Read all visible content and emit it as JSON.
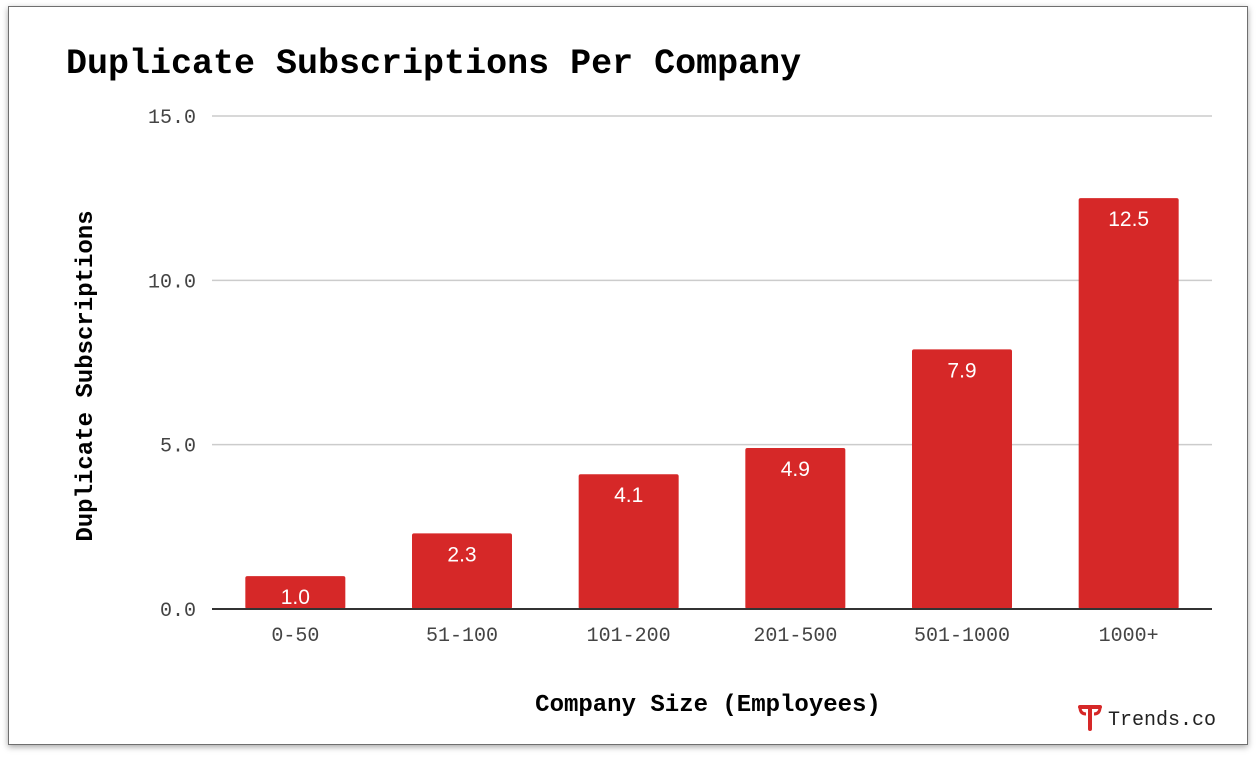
{
  "chart_data": {
    "type": "bar",
    "title": "Duplicate Subscriptions Per Company",
    "xlabel": "Company Size (Employees)",
    "ylabel": "Duplicate Subscriptions",
    "categories": [
      "0-50",
      "51-100",
      "101-200",
      "201-500",
      "501-1000",
      "1000+"
    ],
    "values": [
      1.0,
      2.3,
      4.1,
      4.9,
      7.9,
      12.5
    ],
    "data_labels": [
      "1.0",
      "2.3",
      "4.1",
      "4.9",
      "7.9",
      "12.5"
    ],
    "ylim": [
      0,
      15
    ],
    "yticks": [
      "0.0",
      "5.0",
      "10.0",
      "15.0"
    ],
    "ytick_values": [
      0,
      5,
      10,
      15
    ],
    "grid": true,
    "bar_color": "#d62828",
    "grid_color": "#cccccc",
    "axis_color": "#333333"
  },
  "brand": {
    "name": "Trends.co",
    "logo_icon": "trends-t-logo-icon",
    "color": "#d62828"
  }
}
